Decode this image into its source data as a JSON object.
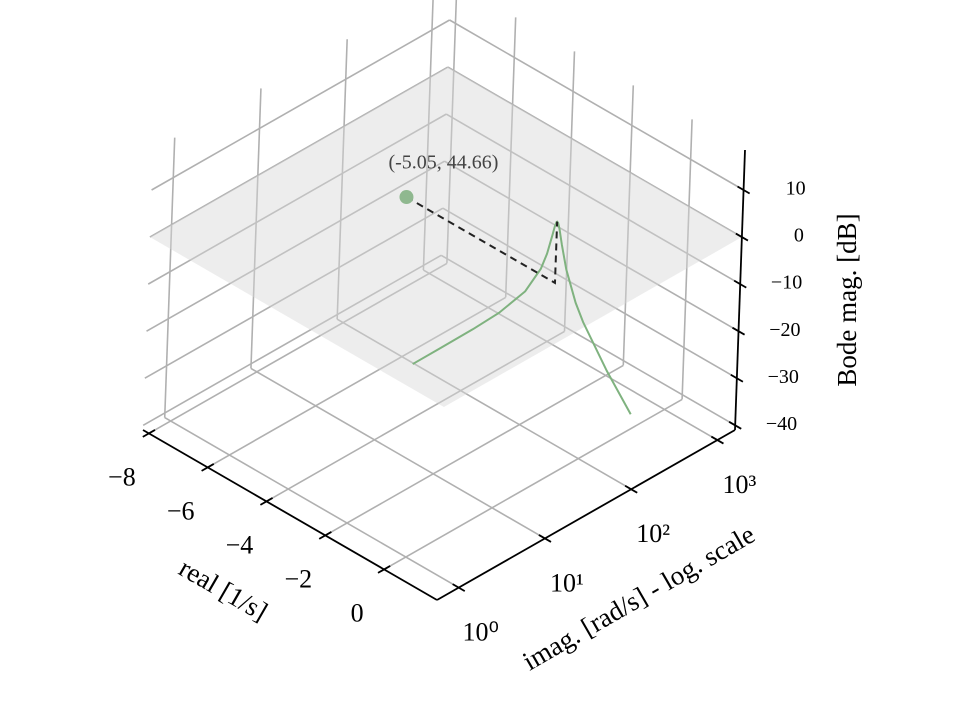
{
  "chart_data": {
    "type": "line3d",
    "xlabel": "real [1/s]",
    "ylabel": "imag. [rad/s] - log. scale",
    "zlabel": "Bode mag. [dB]",
    "xlim": [
      -8.2,
      1.8
    ],
    "ylim": [
      0.56,
      1600
    ],
    "yscale": "log",
    "zlim": [
      -41,
      18.5
    ],
    "xticks": [
      {
        "value": -8,
        "label": "−8"
      },
      {
        "value": -6,
        "label": "−6"
      },
      {
        "value": -4,
        "label": "−4"
      },
      {
        "value": -2,
        "label": "−2"
      },
      0
    ],
    "yticks": [
      {
        "value": 1,
        "label": "10⁰"
      },
      {
        "value": 10,
        "label": "10¹"
      },
      {
        "value": 100,
        "label": "10²"
      },
      {
        "value": 1000,
        "label": "10³"
      }
    ],
    "zticks": [
      {
        "value": -40,
        "label": "−40"
      },
      {
        "value": -30,
        "label": "−30"
      },
      {
        "value": -20,
        "label": "−20"
      },
      {
        "value": -10,
        "label": "−10"
      },
      0,
      10
    ],
    "grid": true,
    "plane_z": 0,
    "series": [
      {
        "color": "#7fb27f",
        "real": 0,
        "y": [
          1,
          2,
          5,
          10,
          20,
          30,
          35,
          40,
          42,
          44,
          44.66,
          46,
          48,
          52,
          60,
          80,
          100,
          200,
          400
        ],
        "z": [
          0,
          0.02,
          0.11,
          0.43,
          1.85,
          4.82,
          7.32,
          10.8,
          12.21,
          13.0,
          13.01,
          12.58,
          11.11,
          7.39,
          1.53,
          -6.87,
          -12.0,
          -25.5,
          -37.87
        ]
      }
    ],
    "point": {
      "x": -5.05,
      "y": 44.66,
      "z": 0,
      "color": "#8fb88f",
      "label": "(-5.05, 44.66)"
    }
  }
}
